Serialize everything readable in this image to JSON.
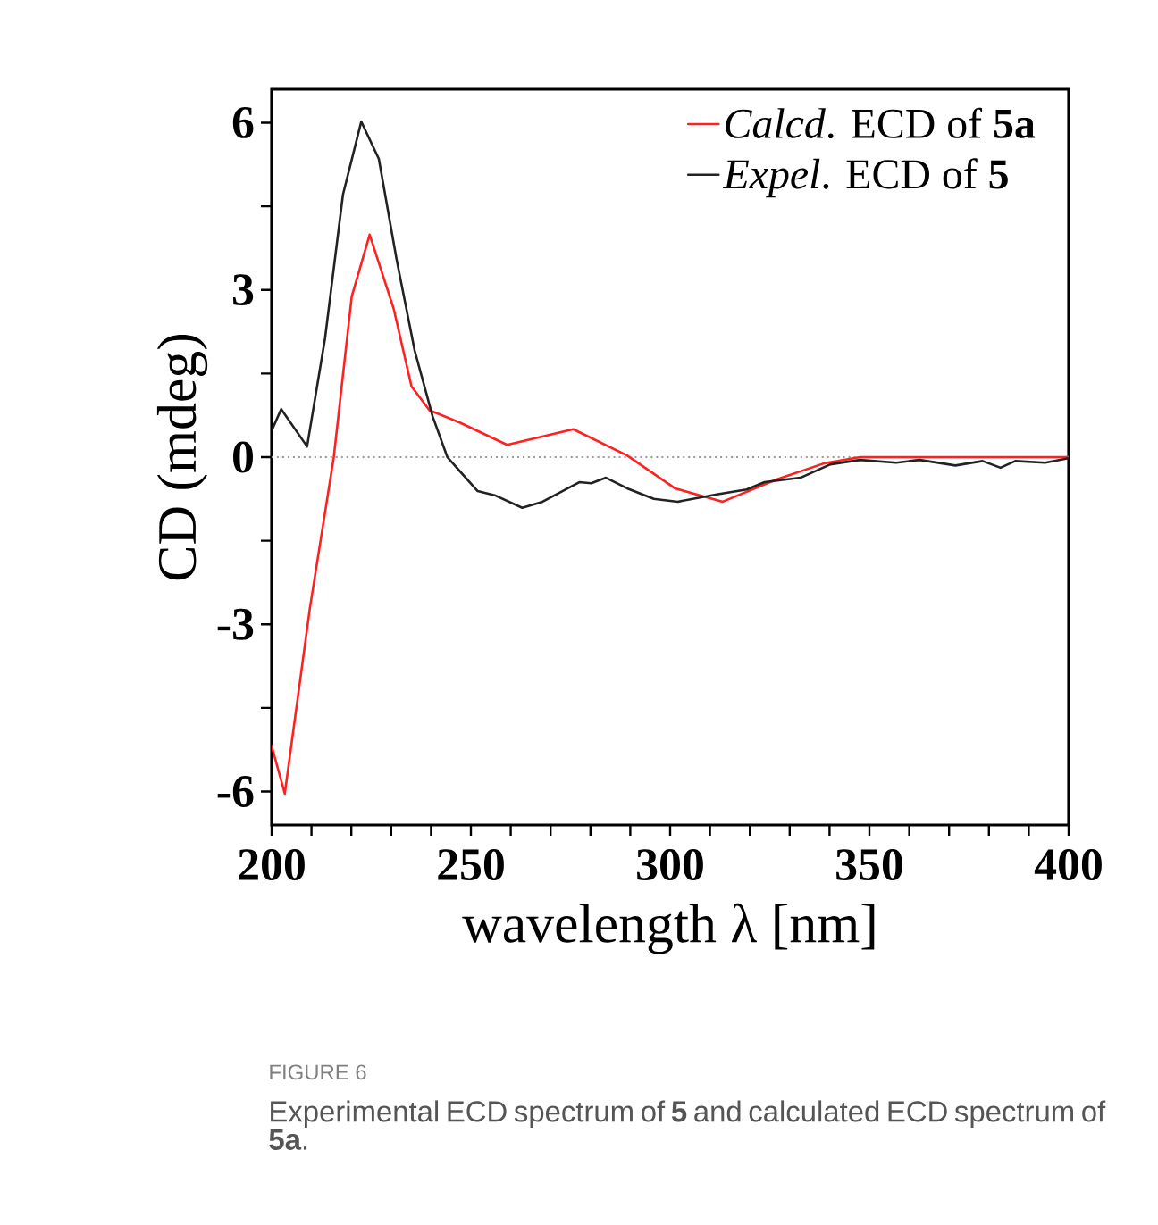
{
  "chart_data": {
    "type": "line",
    "xlabel": "wavelength λ [nm]",
    "ylabel": "CD (mdeg)",
    "xlim": [
      200,
      400
    ],
    "ylim": [
      -6.6,
      6.6
    ],
    "xticks": [
      200,
      {
        "value": 210,
        "label": null
      },
      {
        "value": 220,
        "label": null
      },
      {
        "value": 230,
        "label": null
      },
      {
        "value": 240,
        "label": null
      },
      250,
      {
        "value": 260,
        "label": null
      },
      {
        "value": 270,
        "label": null
      },
      {
        "value": 280,
        "label": null
      },
      {
        "value": 290,
        "label": null
      },
      300,
      {
        "value": 310,
        "label": null
      },
      {
        "value": 320,
        "label": null
      },
      {
        "value": 330,
        "label": null
      },
      {
        "value": 340,
        "label": null
      },
      350,
      {
        "value": 360,
        "label": null
      },
      {
        "value": 370,
        "label": null
      },
      {
        "value": 380,
        "label": null
      },
      {
        "value": 390,
        "label": null
      },
      400
    ],
    "yticks": [
      -6,
      {
        "value": -4.5,
        "label": null
      },
      -3,
      {
        "value": -1.5,
        "label": null
      },
      0,
      {
        "value": 1.5,
        "label": null
      },
      3,
      {
        "value": 4.5,
        "label": null
      },
      6
    ],
    "legend": "top right",
    "ref_lines": [
      {
        "axis": "y",
        "value": 0,
        "color": "#999999",
        "line_style": "dotted"
      }
    ],
    "series": [
      {
        "name": "*Calcd*. ECD of **5a**",
        "color": "#ff2020",
        "x": [
          200,
          203.3,
          209.6,
          215.6,
          220.1,
          224.6,
          230.6,
          235.1,
          239.6,
          247.2,
          259.1,
          275.7,
          289.2,
          301.2,
          313.2,
          326.7,
          338.7,
          347.7,
          360,
          380,
          400
        ],
        "values": [
          -5.18,
          -6.04,
          -2.71,
          0,
          2.88,
          3.99,
          2.67,
          1.27,
          0.84,
          0.62,
          0.22,
          0.5,
          0.03,
          -0.56,
          -0.8,
          -0.4,
          -0.11,
          0,
          0,
          0,
          0
        ]
      },
      {
        "name": "*Expel*. ECD of **5**",
        "color": "#222222",
        "x": [
          200.3,
          202.4,
          208.9,
          213.4,
          217.9,
          222.5,
          226.9,
          231.4,
          235.9,
          240.4,
          244.1,
          251.7,
          256.2,
          262.9,
          268,
          277.2,
          280.2,
          283.9,
          289.2,
          295.9,
          301.9,
          311.7,
          319.2,
          323.7,
          332.7,
          340.2,
          347.7,
          356.7,
          362.6,
          371.6,
          378.4,
          382.9,
          386.6,
          394.1,
          400
        ],
        "values": [
          0.52,
          0.86,
          0.19,
          2.13,
          4.71,
          6.02,
          5.35,
          3.53,
          1.91,
          0.73,
          0,
          -0.61,
          -0.69,
          -0.91,
          -0.8,
          -0.45,
          -0.47,
          -0.37,
          -0.56,
          -0.75,
          -0.8,
          -0.67,
          -0.58,
          -0.45,
          -0.37,
          -0.13,
          -0.05,
          -0.1,
          -0.05,
          -0.15,
          -0.07,
          -0.19,
          -0.07,
          -0.1,
          -0.02
        ]
      }
    ],
    "annotations": [
      "FIGURE 6",
      "Experimental ECD spectrum of **5** and calculated ECD spectrum of **5a**."
    ]
  }
}
